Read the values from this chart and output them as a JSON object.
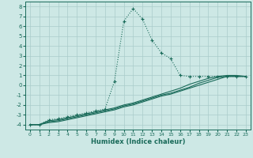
{
  "xlabel": "Humidex (Indice chaleur)",
  "xlim": [
    -0.5,
    23.5
  ],
  "ylim": [
    -4.5,
    8.5
  ],
  "xticks": [
    0,
    1,
    2,
    3,
    4,
    5,
    6,
    7,
    8,
    9,
    10,
    11,
    12,
    13,
    14,
    15,
    16,
    17,
    18,
    19,
    20,
    21,
    22,
    23
  ],
  "yticks": [
    -4,
    -3,
    -2,
    -1,
    0,
    1,
    2,
    3,
    4,
    5,
    6,
    7,
    8
  ],
  "bg_color": "#cde8e5",
  "grid_color": "#aaccca",
  "line_color": "#1a6b5a",
  "line1_x": [
    0,
    1,
    2,
    3,
    4,
    5,
    6,
    7,
    8,
    9,
    10,
    11,
    12,
    13,
    14,
    15,
    16,
    17,
    18,
    19,
    20,
    21,
    22,
    23
  ],
  "line1_y": [
    -4.0,
    -4.0,
    -3.5,
    -3.4,
    -3.2,
    -3.0,
    -2.8,
    -2.6,
    -2.4,
    0.4,
    6.5,
    7.8,
    6.7,
    4.6,
    3.3,
    2.7,
    1.0,
    0.9,
    0.9,
    0.9,
    0.9,
    0.9,
    0.9,
    0.9
  ],
  "line2_x": [
    0,
    1,
    2,
    3,
    4,
    5,
    6,
    7,
    8,
    9,
    10,
    11,
    12,
    13,
    14,
    15,
    16,
    17,
    18,
    19,
    20,
    21,
    22,
    23
  ],
  "line2_y": [
    -4.0,
    -4.0,
    -3.6,
    -3.5,
    -3.3,
    -3.1,
    -2.9,
    -2.7,
    -2.5,
    -2.3,
    -2.0,
    -1.8,
    -1.5,
    -1.2,
    -0.9,
    -0.6,
    -0.3,
    0.1,
    0.4,
    0.7,
    0.9,
    1.0,
    1.0,
    0.9
  ],
  "line3_x": [
    0,
    1,
    2,
    3,
    4,
    5,
    6,
    7,
    8,
    9,
    10,
    11,
    12,
    13,
    14,
    15,
    16,
    17,
    18,
    19,
    20,
    21,
    22,
    23
  ],
  "line3_y": [
    -4.0,
    -4.0,
    -3.7,
    -3.6,
    -3.4,
    -3.2,
    -3.0,
    -2.8,
    -2.6,
    -2.4,
    -2.1,
    -1.9,
    -1.6,
    -1.3,
    -1.0,
    -0.8,
    -0.5,
    -0.2,
    0.2,
    0.5,
    0.8,
    0.9,
    0.9,
    0.9
  ],
  "line4_x": [
    0,
    1,
    2,
    3,
    4,
    5,
    6,
    7,
    8,
    9,
    10,
    11,
    12,
    13,
    14,
    15,
    16,
    17,
    18,
    19,
    20,
    21,
    22,
    23
  ],
  "line4_y": [
    -4.0,
    -4.0,
    -3.8,
    -3.7,
    -3.5,
    -3.3,
    -3.1,
    -2.9,
    -2.7,
    -2.5,
    -2.2,
    -2.0,
    -1.7,
    -1.4,
    -1.1,
    -0.9,
    -0.6,
    -0.3,
    0.0,
    0.3,
    0.6,
    0.9,
    0.9,
    0.9
  ]
}
